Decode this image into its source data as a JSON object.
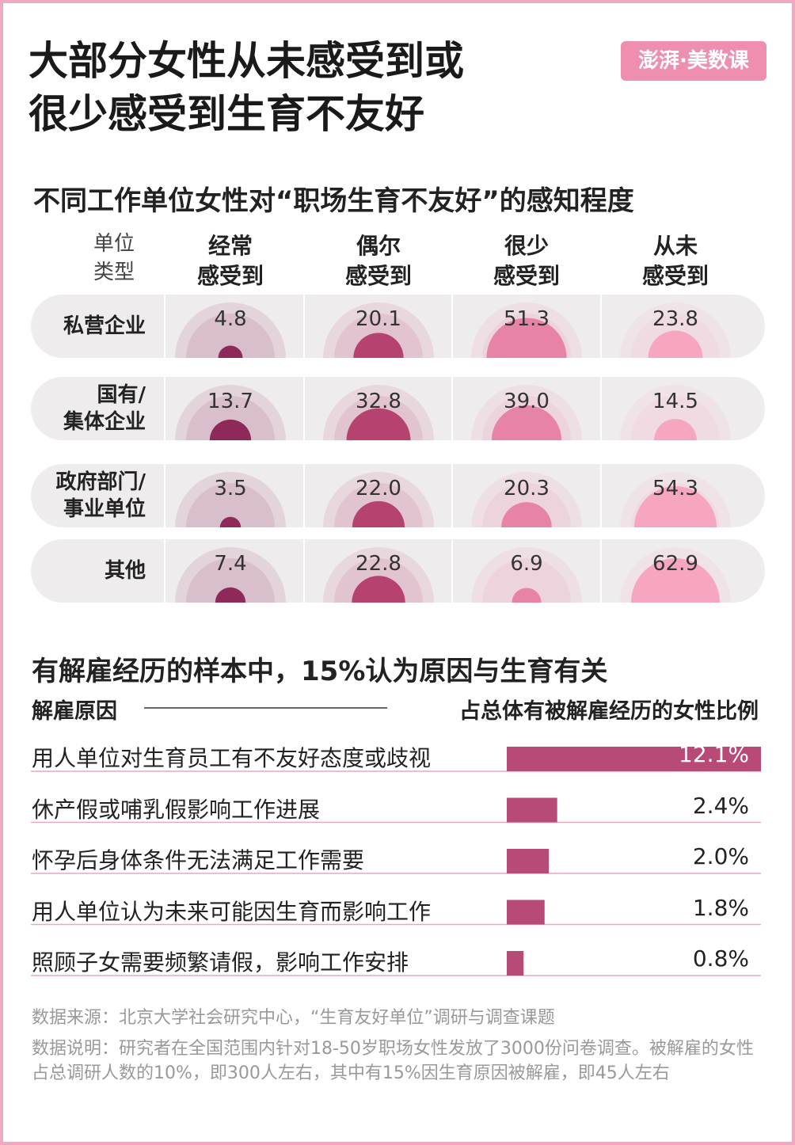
{
  "title": "大部分女性从未感受到或\n很少感受到生育不友好",
  "logo": "澎湃·美数课",
  "chart_data": [
    {
      "type": "semicircle",
      "title": "不同工作单位女性对“职场生育不友好”的感知程度",
      "category_header": "单位\n类型",
      "categories": [
        "私营企业",
        "国有/\n集体企业",
        "政府部门/\n事业单位",
        "其他"
      ],
      "series": [
        {
          "name": "经常\n感受到",
          "color": "#8e2a5a",
          "values": [
            4.8,
            13.7,
            3.5,
            7.4
          ],
          "value_labels": [
            "4.8",
            "13.7",
            "3.5",
            "7.4"
          ]
        },
        {
          "name": "偶尔\n感受到",
          "color": "#b5426f",
          "values": [
            20.1,
            32.8,
            22.0,
            22.8
          ],
          "value_labels": [
            "20.1",
            "32.8",
            "22.0",
            "22.8"
          ]
        },
        {
          "name": "很少\n感受到",
          "color": "#e883a8",
          "values": [
            51.3,
            39.0,
            20.3,
            6.9
          ],
          "value_labels": [
            "51.3",
            "39.0",
            "20.3",
            "6.9"
          ]
        },
        {
          "name": "从未\n感受到",
          "color": "#f7a6c0",
          "values": [
            23.8,
            14.5,
            54.3,
            62.9
          ],
          "value_labels": [
            "23.8",
            "14.5",
            "54.3",
            "62.9"
          ]
        }
      ]
    },
    {
      "type": "bar",
      "title": "有解雇经历的样本中，15%认为原因与生育有关",
      "category_header": "解雇原因",
      "value_header": "占总体有被解雇经历的女性比例",
      "categories": [
        "用人单位对生育员工有不友好态度或歧视",
        "休产假或哺乳假影响工作进展",
        "怀孕后身体条件无法满足工作需要",
        "用人单位认为未来可能因生育而影响工作",
        "照顾子女需要频繁请假，影响工作安排"
      ],
      "values": [
        12.1,
        2.4,
        2.0,
        1.8,
        0.8
      ],
      "value_labels": [
        "12.1%",
        "2.4%",
        "2.0%",
        "1.8%",
        "0.8%"
      ],
      "color": "#b84a78",
      "xlim": [
        0,
        12.1
      ]
    }
  ],
  "source": "数据来源：北京大学社会研究中心，“生育友好单位”调研与调查课题",
  "note": "数据说明：研究者在全国范围内针对18-50岁职场女性发放了3000份问卷调查。被解雇的女性占总调研人数的10%，即300人左右，其中有15%因生育原因被解雇，即45人左右"
}
